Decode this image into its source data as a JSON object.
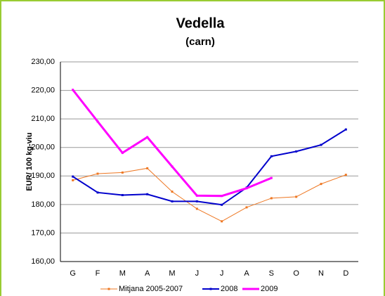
{
  "chart_data": {
    "type": "line",
    "title": "Vedella",
    "subtitle": "(carn)",
    "y_label": "EUR/ 100 kg-viu",
    "categories": [
      "G",
      "F",
      "M",
      "A",
      "M",
      "J",
      "J",
      "A",
      "S",
      "O",
      "N",
      "D"
    ],
    "series": [
      {
        "name": "Mitjana 2005-2007",
        "color": "#ee7722",
        "width": 1,
        "values": [
          188.5,
          190.8,
          191.2,
          192.7,
          184.5,
          178.5,
          174.1,
          179.0,
          182.2,
          182.7,
          187.2,
          190.4
        ]
      },
      {
        "name": "2008",
        "color": "#0000cc",
        "width": 2,
        "values": [
          189.8,
          184.2,
          183.3,
          183.6,
          181.1,
          181.1,
          179.9,
          185.9,
          196.9,
          198.6,
          200.9,
          206.3
        ]
      },
      {
        "name": "2009",
        "color": "#ff00ff",
        "width": 3,
        "values": [
          220.2,
          209.1,
          198.1,
          203.6,
          193.3,
          183.1,
          183.0,
          185.7,
          189.3,
          null,
          null,
          null
        ]
      }
    ],
    "ylim": [
      160,
      230
    ],
    "yticks": [
      {
        "value": 160,
        "label": "160,00"
      },
      {
        "value": 170,
        "label": "170,00"
      },
      {
        "value": 180,
        "label": "180,00"
      },
      {
        "value": 190,
        "label": "190,00"
      },
      {
        "value": 200,
        "label": "200,00"
      },
      {
        "value": 210,
        "label": "210,00"
      },
      {
        "value": 220,
        "label": "220,00"
      },
      {
        "value": 230,
        "label": "230,00"
      }
    ],
    "grid": true
  }
}
